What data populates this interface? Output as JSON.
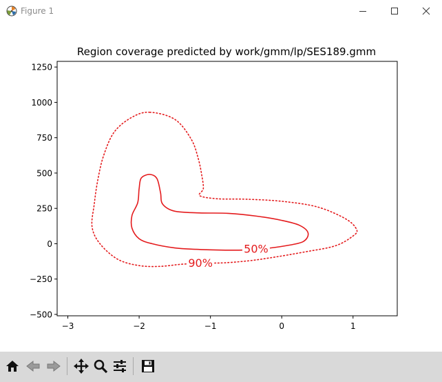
{
  "window": {
    "title": "Figure 1",
    "icon": "matplotlib-logo-icon",
    "controls": [
      "minimize-icon",
      "maximize-icon",
      "close-icon"
    ]
  },
  "toolbar": {
    "tools": [
      {
        "name": "home",
        "icon": "home-icon"
      },
      {
        "name": "back",
        "icon": "back-arrow-icon"
      },
      {
        "name": "forward",
        "icon": "forward-arrow-icon"
      },
      {
        "name": "pan",
        "icon": "move-icon"
      },
      {
        "name": "zoom",
        "icon": "magnifier-icon"
      },
      {
        "name": "configure-subplots",
        "icon": "sliders-icon"
      },
      {
        "name": "save",
        "icon": "floppy-disk-icon"
      }
    ]
  },
  "chart_data": {
    "type": "contour",
    "title": "Region coverage predicted by work/gmm/lp/SES189.gmm",
    "xlabel": "",
    "ylabel": "",
    "xlim": [
      -3.15,
      1.62
    ],
    "ylim": [
      -510,
      1290
    ],
    "xticks": [
      -3,
      -2,
      -1,
      0,
      1
    ],
    "xtick_labels": [
      "−3",
      "−2",
      "−1",
      "0",
      "1"
    ],
    "yticks": [
      -500,
      -250,
      0,
      250,
      500,
      750,
      1000,
      1250
    ],
    "ytick_labels": [
      "−500",
      "−250",
      "0",
      "250",
      "500",
      "750",
      "1000",
      "1250"
    ],
    "grid": false,
    "legend": "none",
    "color": "#e41a1c",
    "contours": [
      {
        "label": "50%",
        "style": "solid",
        "label_at": [
          -0.36,
          -35
        ],
        "points": [
          [
            -1.85,
            490
          ],
          [
            -1.97,
            465
          ],
          [
            -2.0,
            390
          ],
          [
            -2.02,
            290
          ],
          [
            -2.1,
            200
          ],
          [
            -2.1,
            110
          ],
          [
            -2.0,
            35
          ],
          [
            -1.82,
            0
          ],
          [
            -1.5,
            -30
          ],
          [
            -1.2,
            -40
          ],
          [
            -0.85,
            -45
          ],
          [
            -0.55,
            -45
          ],
          [
            -0.25,
            -35
          ],
          [
            0.05,
            -15
          ],
          [
            0.3,
            15
          ],
          [
            0.37,
            75
          ],
          [
            0.25,
            130
          ],
          [
            0.0,
            165
          ],
          [
            -0.35,
            195
          ],
          [
            -0.75,
            215
          ],
          [
            -1.15,
            218
          ],
          [
            -1.5,
            230
          ],
          [
            -1.67,
            280
          ],
          [
            -1.7,
            360
          ],
          [
            -1.75,
            460
          ],
          [
            -1.85,
            490
          ]
        ]
      },
      {
        "label": "90%",
        "style": "dotted",
        "label_at": [
          -1.14,
          -135
        ],
        "points": [
          [
            -1.85,
            930
          ],
          [
            -2.1,
            895
          ],
          [
            -2.35,
            790
          ],
          [
            -2.5,
            620
          ],
          [
            -2.58,
            450
          ],
          [
            -2.63,
            280
          ],
          [
            -2.66,
            120
          ],
          [
            -2.55,
            0
          ],
          [
            -2.3,
            -110
          ],
          [
            -2.0,
            -155
          ],
          [
            -1.7,
            -160
          ],
          [
            -1.4,
            -145
          ],
          [
            -1.1,
            -138
          ],
          [
            -0.8,
            -135
          ],
          [
            -0.45,
            -120
          ],
          [
            -0.1,
            -95
          ],
          [
            0.3,
            -60
          ],
          [
            0.75,
            -15
          ],
          [
            1.0,
            55
          ],
          [
            1.05,
            100
          ],
          [
            0.9,
            175
          ],
          [
            0.5,
            260
          ],
          [
            0.0,
            300
          ],
          [
            -0.5,
            315
          ],
          [
            -0.9,
            318
          ],
          [
            -1.15,
            340
          ],
          [
            -1.1,
            390
          ],
          [
            -1.12,
            480
          ],
          [
            -1.17,
            600
          ],
          [
            -1.27,
            740
          ],
          [
            -1.5,
            880
          ],
          [
            -1.85,
            930
          ]
        ]
      }
    ]
  }
}
